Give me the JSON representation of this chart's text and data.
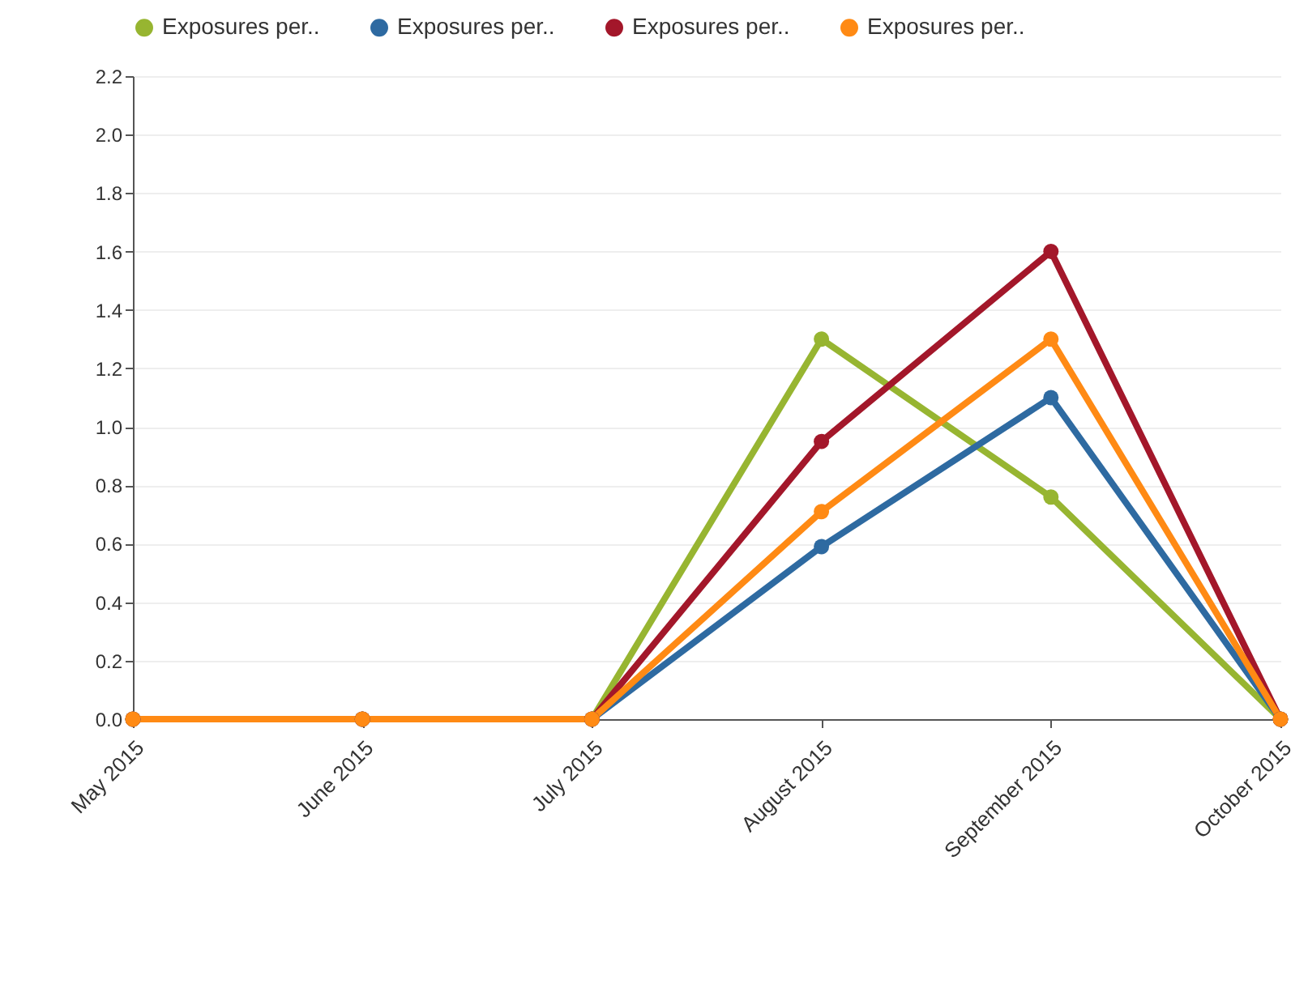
{
  "chart_data": {
    "type": "line",
    "categories": [
      "May 2015",
      "June 2015",
      "July 2015",
      "August 2015",
      "September 2015",
      "October 2015"
    ],
    "series": [
      {
        "name": "Exposures per..",
        "color": "#97b531",
        "values": [
          0,
          0,
          0,
          1.3,
          0.76,
          0
        ]
      },
      {
        "name": "Exposures per..",
        "color": "#2e6aa1",
        "values": [
          0,
          0,
          0,
          0.59,
          1.1,
          0
        ]
      },
      {
        "name": "Exposures per..",
        "color": "#a3172a",
        "values": [
          0,
          0,
          0,
          0.95,
          1.6,
          0
        ]
      },
      {
        "name": "Exposures per..",
        "color": "#ff8a14",
        "values": [
          0,
          0,
          0,
          0.71,
          1.3,
          0
        ]
      }
    ],
    "ylim": [
      0,
      2.2
    ],
    "yticks": [
      {
        "value": 0,
        "label": "0.0"
      },
      0.2,
      0.4,
      0.6,
      0.8,
      {
        "value": 1,
        "label": "1.0"
      },
      1.2,
      1.4,
      1.6,
      1.8,
      {
        "value": 2,
        "label": "2.0"
      },
      2.2
    ],
    "grid": "y",
    "legend": "top left",
    "marker": "circle",
    "line_style": "solid"
  }
}
